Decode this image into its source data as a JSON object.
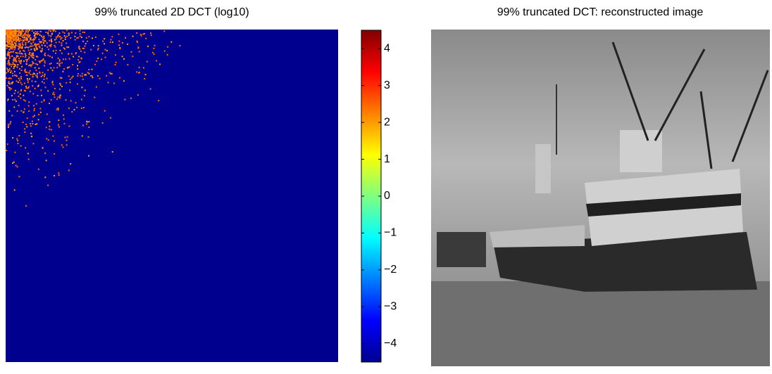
{
  "chart_data": [
    {
      "type": "heatmap",
      "title": "99% truncated 2D DCT (log10)",
      "colorbar": {
        "lim": [
          -4.5,
          4.5
        ],
        "ticks": [
          {
            "value": -4,
            "label": "−4"
          },
          {
            "value": -3,
            "label": "−3"
          },
          {
            "value": -2,
            "label": "−2"
          },
          {
            "value": -1,
            "label": "−1"
          },
          0,
          1,
          2,
          3,
          4
        ]
      }
    },
    {
      "type": "image",
      "title": "99% truncated DCT: reconstructed image"
    }
  ]
}
